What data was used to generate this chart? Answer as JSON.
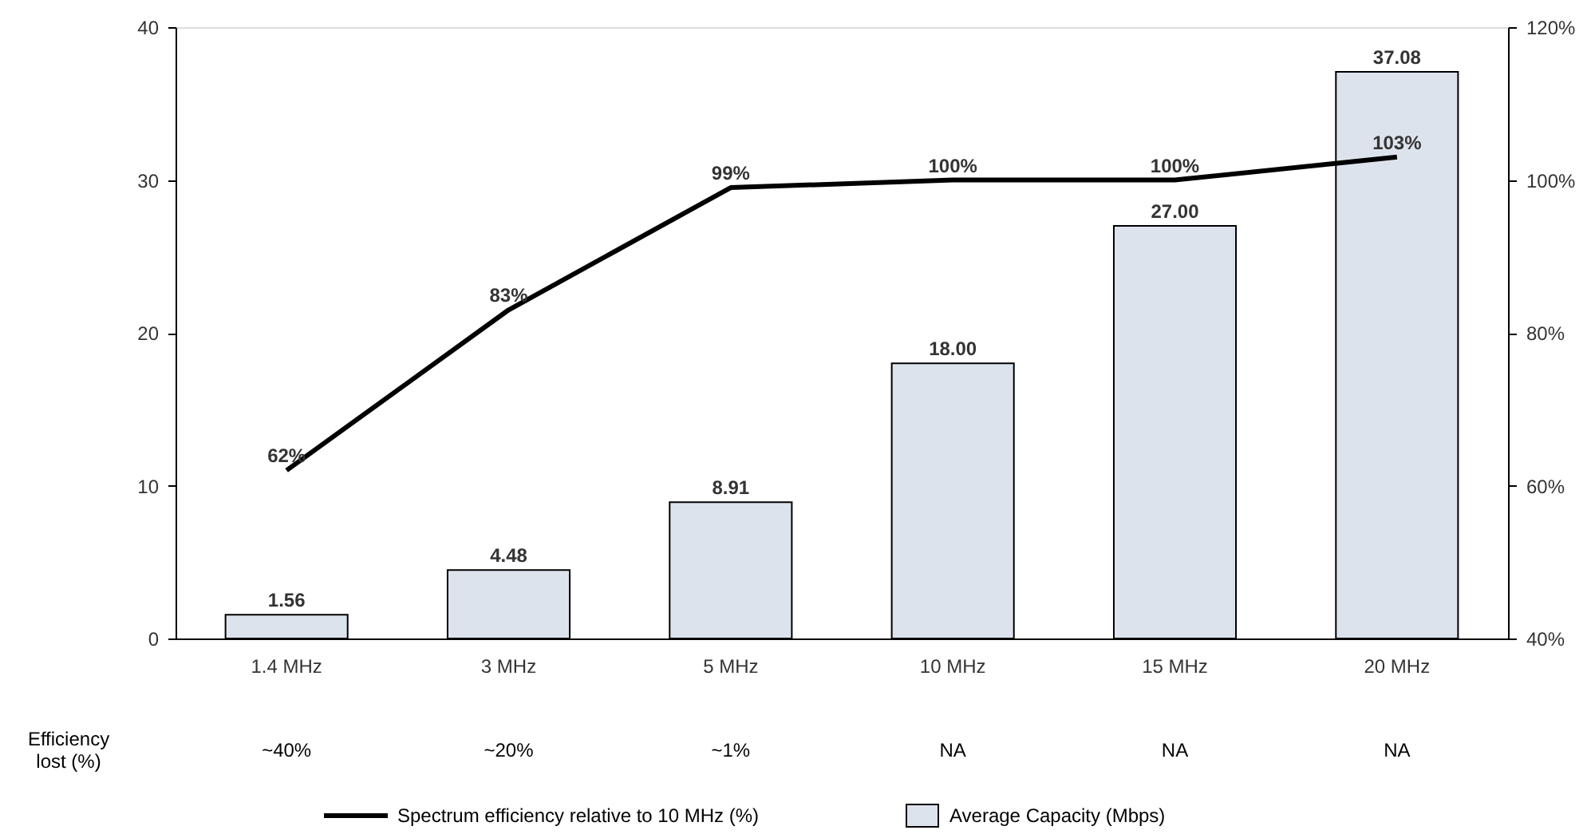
{
  "chart_data": {
    "type": "bar",
    "categories": [
      "1.4 MHz",
      "3 MHz",
      "5 MHz",
      "10 MHz",
      "15 MHz",
      "20 MHz"
    ],
    "series": [
      {
        "name": "Average Capacity (Mbps)",
        "color": "#dde3ed",
        "values": [
          1.56,
          4.48,
          8.91,
          18,
          27,
          37.08
        ],
        "value_labels": [
          "1.56",
          "4.48",
          "8.91",
          "18.00",
          "27.00",
          "37.08"
        ]
      },
      {
        "name": "Spectrum efficiency relative to 10 MHz (%)",
        "type": "line",
        "axis": "y2",
        "color": "#000000",
        "values": [
          62,
          83,
          99,
          100,
          100,
          103
        ],
        "value_labels": [
          "62%",
          "83%",
          "99%",
          "100%",
          "100%",
          "103%"
        ]
      }
    ],
    "ylim": [
      0,
      40
    ],
    "yticks": [
      0,
      10,
      20,
      30,
      40
    ],
    "y2lim": [
      40,
      120
    ],
    "y2ticks": [
      {
        "value": 40,
        "label": "40%"
      },
      {
        "value": 60,
        "label": "60%"
      },
      {
        "value": 80,
        "label": "80%"
      },
      {
        "value": 100,
        "label": "100%"
      },
      {
        "value": 120,
        "label": "120%"
      }
    ],
    "annotations": [
      "Efficiency\nlost (%)",
      "~40%",
      "~20%",
      "~1%",
      "NA",
      "NA",
      "NA"
    ],
    "grid": false,
    "legend": "bottom",
    "marker": "none",
    "line_style": "solid"
  }
}
